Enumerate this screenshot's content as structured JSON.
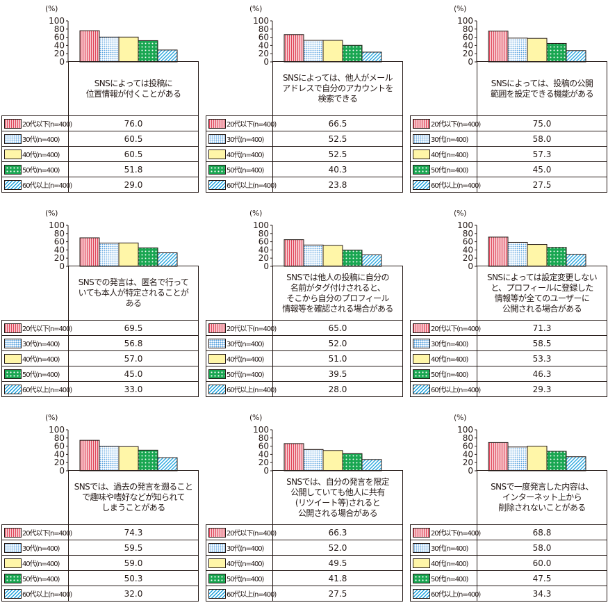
{
  "unit_label": "(%)",
  "legend": [
    {
      "label": "20代以下(n=400)",
      "pattern": "p20"
    },
    {
      "label": "30代(n=400)",
      "pattern": "p30"
    },
    {
      "label": "40代(n=400)",
      "pattern": "p40"
    },
    {
      "label": "50代(n=400)",
      "pattern": "p50"
    },
    {
      "label": "60代以上(n=400)",
      "pattern": "p60"
    }
  ],
  "colors": {
    "p20_fill": "#f7c6cb",
    "p20_stripe": "#e0445a",
    "p30_dots": "#5aa3df",
    "p40_fill": "#fff6a8",
    "p50_fill": "#19a651",
    "p60_stripe": "#1aa0dc"
  },
  "chart_data": [
    {
      "type": "bar",
      "ylim": [
        0,
        100
      ],
      "yticks": [
        0,
        20,
        40,
        60,
        80,
        100
      ],
      "ylabel": "(%)",
      "title": "SNSによっては投稿に\n位置情報が付くことがある",
      "categories": [
        "20代以下(n=400)",
        "30代(n=400)",
        "40代(n=400)",
        "50代(n=400)",
        "60代以上(n=400)"
      ],
      "values": [
        76.0,
        60.5,
        60.5,
        51.8,
        29.0
      ],
      "value_labels": [
        "76.0",
        "60.5",
        "60.5",
        "51.8",
        "29.0"
      ]
    },
    {
      "type": "bar",
      "ylim": [
        0,
        100
      ],
      "yticks": [
        0,
        20,
        40,
        60,
        80,
        100
      ],
      "ylabel": "(%)",
      "title": "SNSによっては、他人がメール\nアドレスで自分のアカウントを\n検索できる",
      "categories": [
        "20代以下(n=400)",
        "30代(n=400)",
        "40代(n=400)",
        "50代(n=400)",
        "60代以上(n=400)"
      ],
      "values": [
        66.5,
        52.5,
        52.5,
        40.3,
        23.8
      ],
      "value_labels": [
        "66.5",
        "52.5",
        "52.5",
        "40.3",
        "23.8"
      ]
    },
    {
      "type": "bar",
      "ylim": [
        0,
        100
      ],
      "yticks": [
        0,
        20,
        40,
        60,
        80,
        100
      ],
      "ylabel": "(%)",
      "title": "SNSによっては、投稿の公開\n範囲を設定できる機能がある",
      "categories": [
        "20代以下(n=400)",
        "30代(n=400)",
        "40代(n=400)",
        "50代(n=400)",
        "60代以上(n=400)"
      ],
      "values": [
        75.0,
        58.0,
        57.3,
        45.0,
        27.5
      ],
      "value_labels": [
        "75.0",
        "58.0",
        "57.3",
        "45.0",
        "27.5"
      ]
    },
    {
      "type": "bar",
      "ylim": [
        0,
        100
      ],
      "yticks": [
        0,
        20,
        40,
        60,
        80,
        100
      ],
      "ylabel": "(%)",
      "title": "SNSでの発言は、匿名で行って\nいても本人が特定されることが\nある",
      "categories": [
        "20代以下(n=400)",
        "30代(n=400)",
        "40代(n=400)",
        "50代(n=400)",
        "60代以上(n=400)"
      ],
      "values": [
        69.5,
        56.8,
        57.0,
        45.0,
        33.0
      ],
      "value_labels": [
        "69.5",
        "56.8",
        "57.0",
        "45.0",
        "33.0"
      ]
    },
    {
      "type": "bar",
      "ylim": [
        0,
        100
      ],
      "yticks": [
        0,
        20,
        40,
        60,
        80,
        100
      ],
      "ylabel": "(%)",
      "title": "SNSでは他人の投稿に自分の\n名前がタグ付けされると、\nそこから自分のプロフィール\n情報等を確認される場合がある",
      "categories": [
        "20代以下(n=400)",
        "30代(n=400)",
        "40代(n=400)",
        "50代(n=400)",
        "60代以上(n=400)"
      ],
      "values": [
        65.0,
        52.0,
        51.0,
        39.5,
        28.0
      ],
      "value_labels": [
        "65.0",
        "52.0",
        "51.0",
        "39.5",
        "28.0"
      ]
    },
    {
      "type": "bar",
      "ylim": [
        0,
        100
      ],
      "yticks": [
        0,
        20,
        40,
        60,
        80,
        100
      ],
      "ylabel": "(%)",
      "title": "SNSによっては設定変更しない\nと、プロフィールに登録した\n情報等が全てのユーザーに\n公開される場合がある",
      "categories": [
        "20代以下(n=400)",
        "30代(n=400)",
        "40代(n=400)",
        "50代(n=400)",
        "60代以上(n=400)"
      ],
      "values": [
        71.3,
        58.5,
        53.3,
        46.3,
        29.3
      ],
      "value_labels": [
        "71.3",
        "58.5",
        "53.3",
        "46.3",
        "29.3"
      ]
    },
    {
      "type": "bar",
      "ylim": [
        0,
        100
      ],
      "yticks": [
        0,
        20,
        40,
        60,
        80,
        100
      ],
      "ylabel": "(%)",
      "title": "SNSでは、過去の発言を遡ること\nで趣味や嗜好などが知られて\nしまうことがある",
      "categories": [
        "20代以下(n=400)",
        "30代(n=400)",
        "40代(n=400)",
        "50代(n=400)",
        "60代以上(n=400)"
      ],
      "values": [
        74.3,
        59.5,
        59.0,
        50.3,
        32.0
      ],
      "value_labels": [
        "74.3",
        "59.5",
        "59.0",
        "50.3",
        "32.0"
      ]
    },
    {
      "type": "bar",
      "ylim": [
        0,
        100
      ],
      "yticks": [
        0,
        20,
        40,
        60,
        80,
        100
      ],
      "ylabel": "(%)",
      "title": "SNSでは、自分の発言を限定\n公開していても他人に共有\n(リツイート等)されると\n公開される場合がある",
      "categories": [
        "20代以下(n=400)",
        "30代(n=400)",
        "40代(n=400)",
        "50代(n=400)",
        "60代以上(n=400)"
      ],
      "values": [
        66.3,
        52.0,
        49.5,
        41.8,
        27.5
      ],
      "value_labels": [
        "66.3",
        "52.0",
        "49.5",
        "41.8",
        "27.5"
      ]
    },
    {
      "type": "bar",
      "ylim": [
        0,
        100
      ],
      "yticks": [
        0,
        20,
        40,
        60,
        80,
        100
      ],
      "ylabel": "(%)",
      "title": "SNSで一度発言した内容は、\nインターネット上から\n削除されないことがある",
      "categories": [
        "20代以下(n=400)",
        "30代(n=400)",
        "40代(n=400)",
        "50代(n=400)",
        "60代以上(n=400)"
      ],
      "values": [
        68.8,
        58.0,
        60.0,
        47.5,
        34.3
      ],
      "value_labels": [
        "68.8",
        "58.0",
        "60.0",
        "47.5",
        "34.3"
      ]
    }
  ]
}
